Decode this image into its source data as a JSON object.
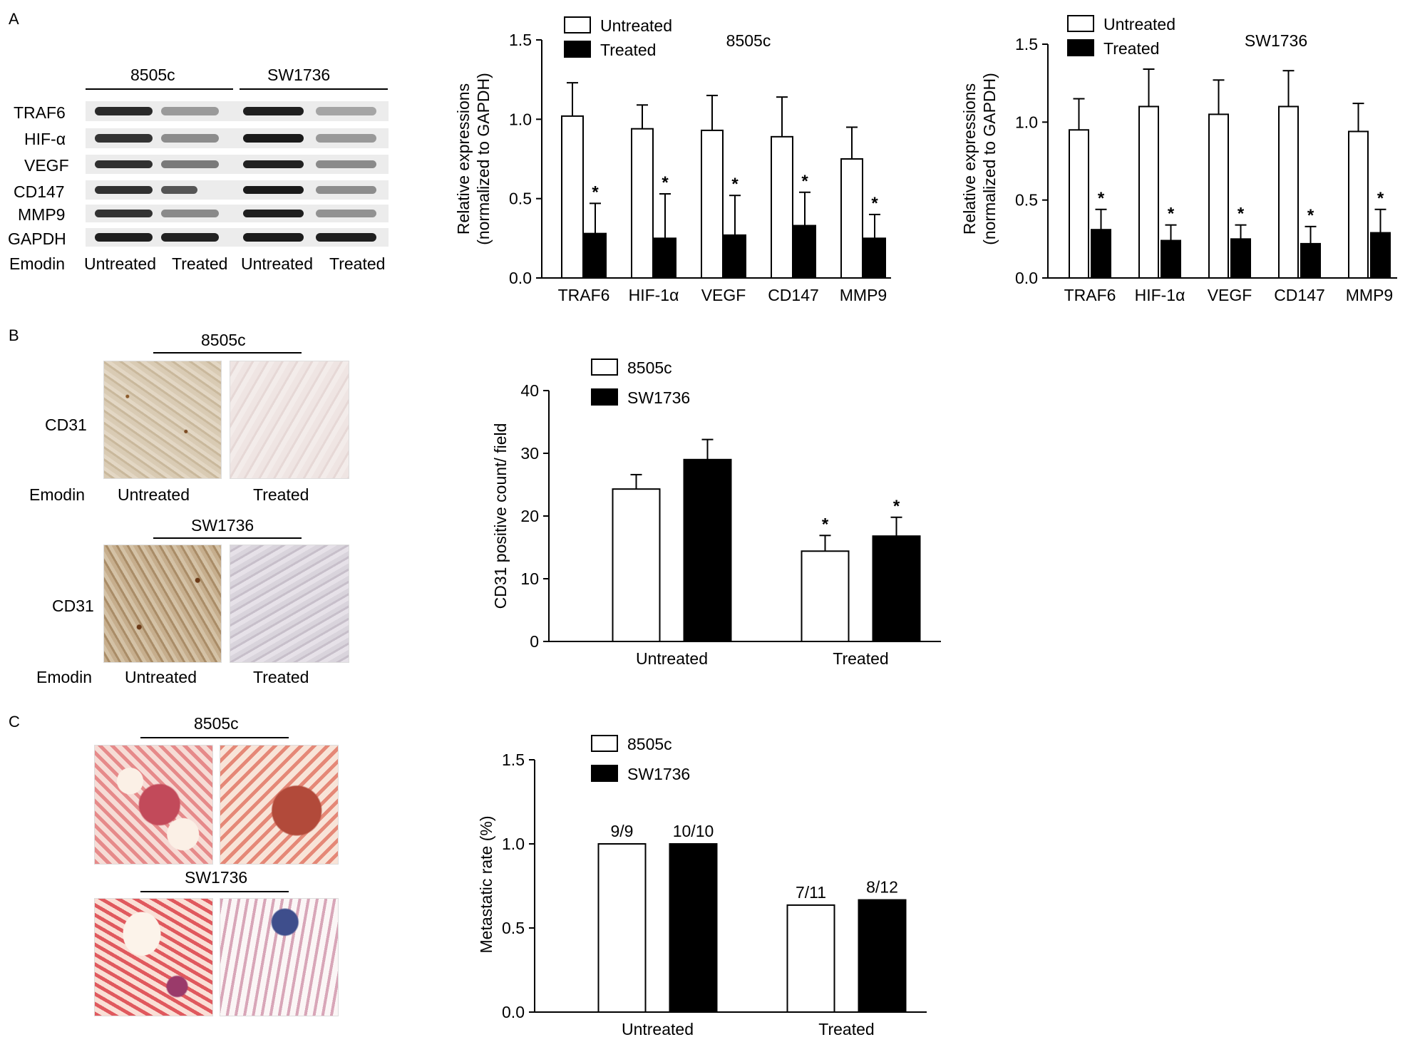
{
  "panels": {
    "a": {
      "letter": "A",
      "blot": {
        "cell_lines": [
          "8505c",
          "SW1736"
        ],
        "proteins": [
          "TRAF6",
          "HIF-α",
          "VEGF",
          "CD147",
          "MMP9",
          "GAPDH"
        ],
        "emodin_label": "Emodin",
        "lane_labels": [
          "Untreated",
          "Treated",
          "Untreated",
          "Treated"
        ]
      }
    },
    "b": {
      "letter": "B",
      "rows": [
        {
          "cell_line": "8505c",
          "stain": "CD31",
          "emodin_label": "Emodin",
          "cond_labels": [
            "Untreated",
            "Treated"
          ]
        },
        {
          "cell_line": "SW1736",
          "stain": "CD31",
          "emodin_label": "Emodin",
          "cond_labels": [
            "Untreated",
            "Treated"
          ]
        }
      ]
    },
    "c": {
      "letter": "C",
      "cell_lines": [
        "8505c",
        "SW1736"
      ]
    }
  },
  "chart_data": [
    {
      "id": "a1",
      "type": "bar",
      "title": "8505c",
      "ylabel": "Relative expressions\n(normalized to GAPDH)",
      "ylim": [
        0,
        1.5
      ],
      "yticks": [
        "0.0",
        "0.5",
        "1.0",
        "1.5"
      ],
      "categories": [
        "TRAF6",
        "HIF-1α",
        "VEGF",
        "CD147",
        "MMP9"
      ],
      "series": [
        {
          "name": "Untreated",
          "values": [
            1.02,
            0.94,
            0.93,
            0.89,
            0.75
          ],
          "errors": [
            0.21,
            0.15,
            0.22,
            0.25,
            0.2
          ],
          "color": "#ffffff"
        },
        {
          "name": "Treated",
          "values": [
            0.28,
            0.25,
            0.27,
            0.33,
            0.25
          ],
          "errors": [
            0.19,
            0.28,
            0.25,
            0.21,
            0.15
          ],
          "color": "#000000"
        }
      ],
      "star_series": 1,
      "legend_position": "top-left"
    },
    {
      "id": "a2",
      "type": "bar",
      "title": "SW1736",
      "ylabel": "Relative expressions\n(normalized to GAPDH)",
      "ylim": [
        0,
        1.5
      ],
      "yticks": [
        "0.0",
        "0.5",
        "1.0",
        "1.5"
      ],
      "categories": [
        "TRAF6",
        "HIF-1α",
        "VEGF",
        "CD147",
        "MMP9"
      ],
      "series": [
        {
          "name": "Untreated",
          "values": [
            0.95,
            1.1,
            1.05,
            1.1,
            0.94
          ],
          "errors": [
            0.2,
            0.24,
            0.22,
            0.23,
            0.18
          ],
          "color": "#ffffff"
        },
        {
          "name": "Treated",
          "values": [
            0.31,
            0.24,
            0.25,
            0.22,
            0.29
          ],
          "errors": [
            0.13,
            0.1,
            0.09,
            0.11,
            0.15
          ],
          "color": "#000000"
        }
      ],
      "star_series": 1,
      "legend_position": "top-left"
    },
    {
      "id": "b",
      "type": "bar",
      "title": "",
      "ylabel": "CD31 positive count/ field",
      "ylim": [
        0,
        40
      ],
      "yticks": [
        "0",
        "10",
        "20",
        "30",
        "40"
      ],
      "categories": [
        "Untreated",
        "Treated"
      ],
      "series": [
        {
          "name": "8505c",
          "values": [
            24.3,
            14.4
          ],
          "errors": [
            2.3,
            2.5
          ],
          "color": "#ffffff"
        },
        {
          "name": "SW1736",
          "values": [
            29.0,
            16.8
          ],
          "errors": [
            3.2,
            3.0
          ],
          "color": "#000000"
        }
      ],
      "stars_on_category": 1,
      "legend_position": "top-left"
    },
    {
      "id": "c",
      "type": "bar",
      "title": "",
      "ylabel": "Metastatic rate (%)",
      "ylim": [
        0,
        1.5
      ],
      "yticks": [
        "0.0",
        "0.5",
        "1.0",
        "1.5"
      ],
      "categories": [
        "Untreated",
        "Treated"
      ],
      "series": [
        {
          "name": "8505c",
          "values": [
            1.0,
            0.636
          ],
          "labels": [
            "9/9",
            "7/11"
          ],
          "color": "#ffffff"
        },
        {
          "name": "SW1736",
          "values": [
            1.0,
            0.667
          ],
          "labels": [
            "10/10",
            "8/12"
          ],
          "color": "#000000"
        }
      ],
      "legend_position": "top-left"
    }
  ]
}
